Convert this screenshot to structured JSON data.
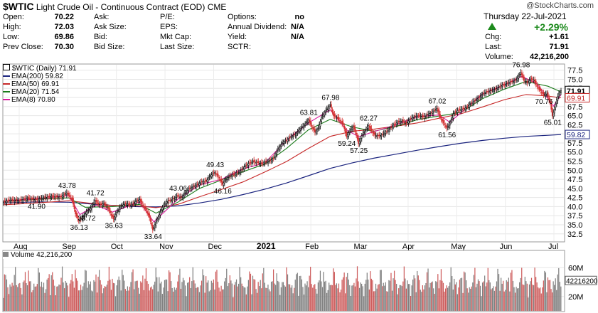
{
  "header": {
    "symbol": "$WTIC",
    "name": "Light Crude Oil - Continuous Contract (EOD)",
    "exchange": "CME",
    "watermark": "@StockCharts.com",
    "date": "Thursday   22-Jul-2021",
    "change_pct": "+2.29%",
    "fields": {
      "open_label": "Open:",
      "open": "70.22",
      "high_label": "High:",
      "high": "72.03",
      "low_label": "Low:",
      "low": "69.86",
      "prev_label": "Prev Close:",
      "prev": "70.30",
      "ask_label": "Ask:",
      "ask": "",
      "asksize_label": "Ask Size:",
      "asksize": "",
      "bid_label": "Bid:",
      "bid": "",
      "bidsize_label": "Bid Size:",
      "bidsize": "",
      "pe_label": "P/E:",
      "pe": "",
      "eps_label": "EPS:",
      "eps": "",
      "mktcap_label": "Mkt Cap:",
      "mktcap": "",
      "lastsize_label": "Last Size:",
      "lastsize": "",
      "options_label": "Options:",
      "options": "no",
      "div_label": "Annual Dividend:",
      "div": "N/A",
      "yield_label": "Yield:",
      "yield": "N/A",
      "sctr_label": "SCTR:",
      "sctr": "",
      "chg_label": "Chg:",
      "chg": "+1.61",
      "last_label": "Last:",
      "last": "71.91",
      "volume_label": "Volume:",
      "volume": "42,216,200"
    }
  },
  "legend": {
    "price": "$WTIC (Daily) 71.91",
    "ema200": "EMA(200) 59.82",
    "ema50": "EMA(50) 69.91",
    "ema20": "EMA(20) 71.54",
    "ema8": "EMA(8) 70.80",
    "volume": "Volume 42,216,200"
  },
  "colors": {
    "ema200": "#1a237e",
    "ema50": "#c62828",
    "ema20": "#1b7a1b",
    "ema8": "#d81b9c",
    "up_candle": "#000000",
    "down_candle": "#d32f2f",
    "vol_up": "#808080",
    "vol_down": "#cd5c5c"
  },
  "chart_data": {
    "type": "line",
    "series_type": "candlestick with EMA overlays",
    "ylim": [
      30.5,
      79
    ],
    "yticks": [
      32.5,
      35.0,
      37.5,
      40.0,
      42.5,
      45.0,
      47.5,
      50.0,
      52.5,
      55.0,
      57.5,
      60.0,
      62.5,
      65.0,
      67.5,
      70.0,
      72.5,
      75.0,
      77.5
    ],
    "x_labels": [
      "Aug",
      "Sep",
      "Oct",
      "Nov",
      "Dec",
      "2021",
      "Feb",
      "Mar",
      "Apr",
      "May",
      "Jun",
      "Jul"
    ],
    "price_labels": [
      {
        "text": "43.78",
        "value": 43.78
      },
      {
        "text": "38.72",
        "value": 38.72
      },
      {
        "text": "41.72",
        "value": 41.72
      },
      {
        "text": "36.13",
        "value": 36.13
      },
      {
        "text": "36.63",
        "value": 36.63
      },
      {
        "text": "41.90",
        "value": 41.9
      },
      {
        "text": "33.64",
        "value": 33.64
      },
      {
        "text": "43.06",
        "value": 43.06
      },
      {
        "text": "49.43",
        "value": 49.43
      },
      {
        "text": "46.16",
        "value": 46.16
      },
      {
        "text": "63.81",
        "value": 63.81
      },
      {
        "text": "67.98",
        "value": 67.98
      },
      {
        "text": "59.24",
        "value": 59.24
      },
      {
        "text": "62.27",
        "value": 62.27
      },
      {
        "text": "57.25",
        "value": 57.25
      },
      {
        "text": "67.02",
        "value": 67.02
      },
      {
        "text": "61.56",
        "value": 61.56
      },
      {
        "text": "76.98",
        "value": 76.98
      },
      {
        "text": "70.76",
        "value": 70.76
      },
      {
        "text": "65.01",
        "value": 65.01
      }
    ],
    "right_markers": [
      {
        "text": "71.91",
        "value": 71.91
      },
      {
        "text": "69.91",
        "value": 69.91
      },
      {
        "text": "59.82",
        "value": 59.82
      }
    ],
    "price_path": [
      [
        0,
        41.2
      ],
      [
        6,
        41.8
      ],
      [
        14,
        41.6
      ],
      [
        22,
        42.3
      ],
      [
        30,
        41.9
      ],
      [
        38,
        42.5
      ],
      [
        45,
        42.8
      ],
      [
        52,
        42.6
      ],
      [
        58,
        43.78
      ],
      [
        63,
        42.0
      ],
      [
        66,
        38.0
      ],
      [
        69,
        36.13
      ],
      [
        73,
        37.2
      ],
      [
        76,
        38.5
      ],
      [
        80,
        39.5
      ],
      [
        84,
        41.72
      ],
      [
        88,
        40.5
      ],
      [
        92,
        40.8
      ],
      [
        96,
        39.5
      ],
      [
        99,
        37.6
      ],
      [
        101,
        36.63
      ],
      [
        104,
        38.5
      ],
      [
        108,
        40.2
      ],
      [
        112,
        40.8
      ],
      [
        117,
        40.4
      ],
      [
        121,
        41.4
      ],
      [
        125,
        41.9
      ],
      [
        128,
        40.2
      ],
      [
        131,
        39.0
      ],
      [
        134,
        37.0
      ],
      [
        137,
        33.64
      ],
      [
        140,
        35.8
      ],
      [
        143,
        37.8
      ],
      [
        146,
        39.8
      ],
      [
        150,
        41.4
      ],
      [
        154,
        41.8
      ],
      [
        157,
        42.3
      ],
      [
        160,
        43.06
      ],
      [
        163,
        42.4
      ],
      [
        166,
        43.4
      ],
      [
        170,
        44.8
      ],
      [
        174,
        45.5
      ],
      [
        178,
        46.0
      ],
      [
        182,
        46.8
      ],
      [
        186,
        47.0
      ],
      [
        190,
        48.5
      ],
      [
        194,
        49.43
      ],
      [
        198,
        47.8
      ],
      [
        201,
        46.16
      ],
      [
        205,
        47.8
      ],
      [
        209,
        48.6
      ],
      [
        213,
        49.0
      ],
      [
        217,
        49.6
      ],
      [
        221,
        50.9
      ],
      [
        225,
        51.8
      ],
      [
        229,
        52.4
      ],
      [
        233,
        52.1
      ],
      [
        237,
        51.8
      ],
      [
        240,
        52.2
      ],
      [
        244,
        52.5
      ],
      [
        248,
        53.3
      ],
      [
        252,
        55.8
      ],
      [
        256,
        57.5
      ],
      [
        260,
        58.2
      ],
      [
        264,
        59.3
      ],
      [
        268,
        59.8
      ],
      [
        272,
        61.2
      ],
      [
        276,
        62.4
      ],
      [
        280,
        63.81
      ],
      [
        283,
        62.0
      ],
      [
        286,
        60.5
      ],
      [
        289,
        61.5
      ],
      [
        292,
        64.5
      ],
      [
        296,
        66.4
      ],
      [
        300,
        67.98
      ],
      [
        303,
        65.0
      ],
      [
        306,
        64.5
      ],
      [
        309,
        63.6
      ],
      [
        312,
        62.5
      ],
      [
        315,
        59.24
      ],
      [
        318,
        60.8
      ],
      [
        321,
        62.0
      ],
      [
        324,
        59.8
      ],
      [
        326,
        57.25
      ],
      [
        329,
        59.5
      ],
      [
        332,
        60.8
      ],
      [
        335,
        62.27
      ],
      [
        338,
        60.8
      ],
      [
        341,
        59.6
      ],
      [
        344,
        59.4
      ],
      [
        347,
        59.6
      ],
      [
        350,
        60.2
      ],
      [
        354,
        61.2
      ],
      [
        358,
        62.4
      ],
      [
        362,
        63.2
      ],
      [
        366,
        63.5
      ],
      [
        370,
        62.9
      ],
      [
        374,
        64.2
      ],
      [
        378,
        64.8
      ],
      [
        382,
        65.0
      ],
      [
        386,
        64.6
      ],
      [
        390,
        65.4
      ],
      [
        394,
        66.0
      ],
      [
        398,
        67.02
      ],
      [
        401,
        64.5
      ],
      [
        404,
        63.0
      ],
      [
        407,
        61.56
      ],
      [
        410,
        63.0
      ],
      [
        413,
        65.5
      ],
      [
        417,
        66.4
      ],
      [
        421,
        66.8
      ],
      [
        425,
        67.2
      ],
      [
        429,
        68.3
      ],
      [
        433,
        69.2
      ],
      [
        437,
        70.0
      ],
      [
        441,
        71.2
      ],
      [
        445,
        71.6
      ],
      [
        449,
        72.0
      ],
      [
        453,
        72.4
      ],
      [
        457,
        73.3
      ],
      [
        461,
        73.6
      ],
      [
        465,
        74.2
      ],
      [
        469,
        74.5
      ],
      [
        472,
        75.3
      ],
      [
        475,
        76.98
      ],
      [
        478,
        74.6
      ],
      [
        481,
        74.0
      ],
      [
        484,
        75.0
      ],
      [
        487,
        74.8
      ],
      [
        490,
        73.0
      ],
      [
        493,
        71.8
      ],
      [
        496,
        70.76
      ],
      [
        499,
        71.0
      ],
      [
        502,
        68.5
      ],
      [
        504,
        65.01
      ],
      [
        506,
        66.8
      ],
      [
        508,
        69.5
      ],
      [
        510,
        71.0
      ],
      [
        512,
        71.91
      ]
    ],
    "ema200": [
      [
        0,
        41.0
      ],
      [
        30,
        41.3
      ],
      [
        60,
        41.2
      ],
      [
        90,
        40.5
      ],
      [
        120,
        40.0
      ],
      [
        140,
        39.9
      ],
      [
        160,
        40.2
      ],
      [
        180,
        41.0
      ],
      [
        200,
        42.0
      ],
      [
        220,
        43.3
      ],
      [
        240,
        44.8
      ],
      [
        260,
        46.5
      ],
      [
        280,
        48.5
      ],
      [
        300,
        50.5
      ],
      [
        320,
        52.0
      ],
      [
        340,
        53.3
      ],
      [
        360,
        54.4
      ],
      [
        380,
        55.5
      ],
      [
        400,
        56.5
      ],
      [
        420,
        57.4
      ],
      [
        440,
        58.2
      ],
      [
        460,
        58.8
      ],
      [
        480,
        59.3
      ],
      [
        500,
        59.6
      ],
      [
        512,
        59.82
      ]
    ],
    "ema50": [
      [
        0,
        40.5
      ],
      [
        30,
        41.0
      ],
      [
        60,
        41.6
      ],
      [
        80,
        40.9
      ],
      [
        100,
        40.3
      ],
      [
        120,
        40.3
      ],
      [
        140,
        39.7
      ],
      [
        160,
        40.6
      ],
      [
        180,
        42.7
      ],
      [
        200,
        44.7
      ],
      [
        220,
        46.8
      ],
      [
        240,
        49.5
      ],
      [
        260,
        52.4
      ],
      [
        280,
        56.0
      ],
      [
        300,
        59.3
      ],
      [
        320,
        60.7
      ],
      [
        340,
        61.3
      ],
      [
        360,
        62.1
      ],
      [
        380,
        63.0
      ],
      [
        400,
        64.3
      ],
      [
        420,
        65.5
      ],
      [
        440,
        67.4
      ],
      [
        460,
        69.4
      ],
      [
        480,
        70.8
      ],
      [
        500,
        70.4
      ],
      [
        512,
        69.91
      ]
    ],
    "ema20": [
      [
        0,
        41.4
      ],
      [
        40,
        42.2
      ],
      [
        60,
        42.4
      ],
      [
        75,
        39.8
      ],
      [
        100,
        40.0
      ],
      [
        125,
        40.6
      ],
      [
        140,
        38.2
      ],
      [
        160,
        41.2
      ],
      [
        180,
        45.0
      ],
      [
        200,
        47.3
      ],
      [
        220,
        49.6
      ],
      [
        240,
        51.7
      ],
      [
        260,
        56.0
      ],
      [
        280,
        61.1
      ],
      [
        300,
        64.0
      ],
      [
        320,
        61.9
      ],
      [
        340,
        60.7
      ],
      [
        360,
        62.0
      ],
      [
        380,
        63.9
      ],
      [
        400,
        64.9
      ],
      [
        420,
        65.9
      ],
      [
        440,
        69.7
      ],
      [
        460,
        72.3
      ],
      [
        480,
        74.4
      ],
      [
        500,
        73.1
      ],
      [
        512,
        71.54
      ]
    ],
    "ema8": [
      [
        0,
        41.5
      ],
      [
        40,
        42.4
      ],
      [
        60,
        43.1
      ],
      [
        70,
        37.8
      ],
      [
        85,
        40.4
      ],
      [
        100,
        38.5
      ],
      [
        125,
        41.3
      ],
      [
        138,
        35.8
      ],
      [
        160,
        42.0
      ],
      [
        180,
        46.0
      ],
      [
        200,
        47.5
      ],
      [
        220,
        50.4
      ],
      [
        240,
        52.0
      ],
      [
        260,
        58.3
      ],
      [
        280,
        63.0
      ],
      [
        300,
        66.6
      ],
      [
        315,
        61.1
      ],
      [
        326,
        59.2
      ],
      [
        340,
        60.6
      ],
      [
        360,
        62.4
      ],
      [
        380,
        64.7
      ],
      [
        400,
        65.2
      ],
      [
        410,
        63.2
      ],
      [
        440,
        71.0
      ],
      [
        460,
        73.5
      ],
      [
        476,
        75.8
      ],
      [
        490,
        73.8
      ],
      [
        505,
        67.6
      ],
      [
        512,
        70.8
      ]
    ],
    "volume": {
      "label": "Volume 42,216,200",
      "ylim": [
        0,
        80
      ],
      "yticks": [
        {
          "text": "20M",
          "value": 20
        },
        {
          "text": "60M",
          "value": 60
        }
      ],
      "last_marker": "42216200",
      "last_value": 42.2
    }
  }
}
